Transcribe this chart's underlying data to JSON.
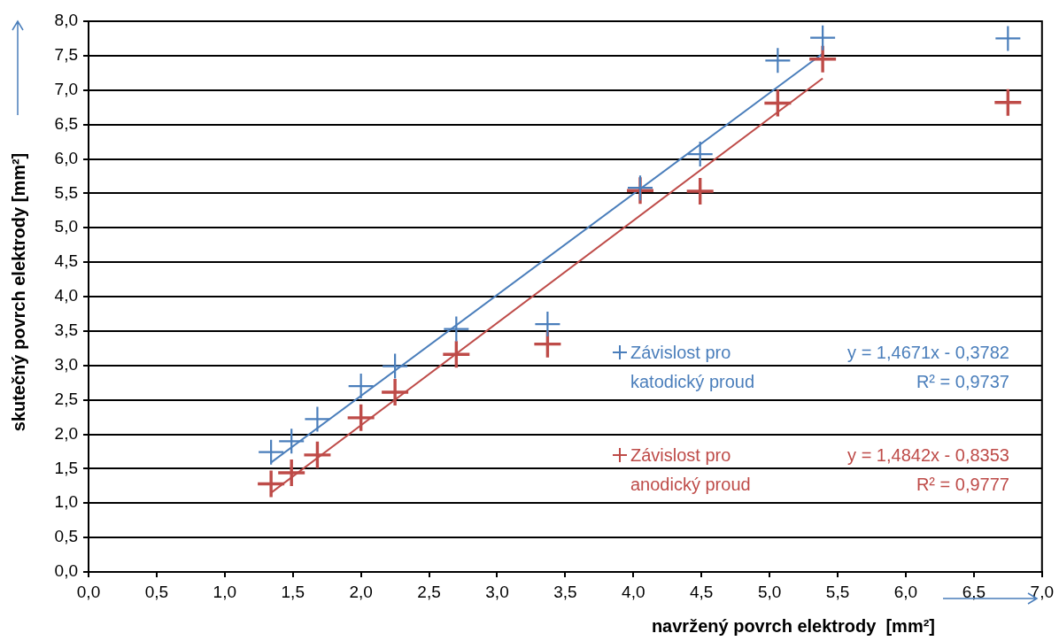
{
  "chart_data": {
    "type": "scatter",
    "xlabel": "navržený povrch elektrody  [mm²]",
    "ylabel": "skutečný povrch elektrody [mm²]",
    "xlim": [
      0,
      7
    ],
    "xticks": [
      {
        "value": 0,
        "label": "0,0"
      },
      {
        "value": 0.5,
        "label": "0,5"
      },
      {
        "value": 1,
        "label": "1,0"
      },
      {
        "value": 1.5,
        "label": "1,5"
      },
      {
        "value": 2,
        "label": "2,0"
      },
      {
        "value": 2.5,
        "label": "2,5"
      },
      {
        "value": 3,
        "label": "3,0"
      },
      {
        "value": 3.5,
        "label": "3,5"
      },
      {
        "value": 4,
        "label": "4,0"
      },
      {
        "value": 4.5,
        "label": "4,5"
      },
      {
        "value": 5,
        "label": "5,0"
      },
      {
        "value": 5.5,
        "label": "5,5"
      },
      {
        "value": 6,
        "label": "6,0"
      },
      {
        "value": 6.5,
        "label": "6,5"
      },
      {
        "value": 7,
        "label": "7,0"
      }
    ],
    "ylim": [
      0,
      8
    ],
    "yticks": [
      {
        "value": 0,
        "label": "0,0"
      },
      {
        "value": 0.5,
        "label": "0,5"
      },
      {
        "value": 1,
        "label": "1,0"
      },
      {
        "value": 1.5,
        "label": "1,5"
      },
      {
        "value": 2,
        "label": "2,0"
      },
      {
        "value": 2.5,
        "label": "2,5"
      },
      {
        "value": 3,
        "label": "3,0"
      },
      {
        "value": 3.5,
        "label": "3,5"
      },
      {
        "value": 4,
        "label": "4,0"
      },
      {
        "value": 4.5,
        "label": "4,5"
      },
      {
        "value": 5,
        "label": "5,0"
      },
      {
        "value": 5.5,
        "label": "5,5"
      },
      {
        "value": 6,
        "label": "6,0"
      },
      {
        "value": 6.5,
        "label": "6,5"
      },
      {
        "value": 7,
        "label": "7,0"
      },
      {
        "value": 7.5,
        "label": "7,5"
      },
      {
        "value": 8,
        "label": "8,0"
      }
    ],
    "grid": "y",
    "legend": "bottom",
    "marker": "cross",
    "annotations": [
      "y = 1,4671x - 0,3782",
      "R² = 0,9737",
      "y = 1,4842x - 0,8353",
      "R² = 0,9777"
    ],
    "series": [
      {
        "name": "Závislost pro katodický proud",
        "color": "#4a7ebb",
        "x": [
          1.34,
          1.49,
          1.68,
          2.0,
          2.25,
          2.7,
          3.37,
          4.05,
          4.49,
          5.06,
          5.39,
          6.75
        ],
        "values": [
          1.74,
          1.9,
          2.22,
          2.7,
          2.99,
          3.53,
          3.6,
          5.58,
          6.07,
          7.43,
          7.76,
          7.75
        ]
      },
      {
        "name": "Závislost pro anodický proud",
        "color": "#be4b48",
        "x": [
          1.34,
          1.49,
          1.68,
          2.0,
          2.25,
          2.7,
          3.37,
          4.05,
          4.49,
          5.06,
          5.39,
          6.75
        ],
        "values": [
          1.28,
          1.44,
          1.7,
          2.24,
          2.61,
          3.16,
          3.31,
          5.54,
          5.53,
          6.81,
          7.45,
          6.82
        ]
      },
      {
        "type": "line",
        "color": "#4a7ebb",
        "marker": "none",
        "x": [
          1.34,
          5.39
        ],
        "values": [
          1.59,
          7.53
        ]
      },
      {
        "type": "line",
        "color": "#be4b48",
        "marker": "none",
        "x": [
          1.34,
          5.39
        ],
        "values": [
          1.15,
          7.17
        ]
      }
    ]
  }
}
